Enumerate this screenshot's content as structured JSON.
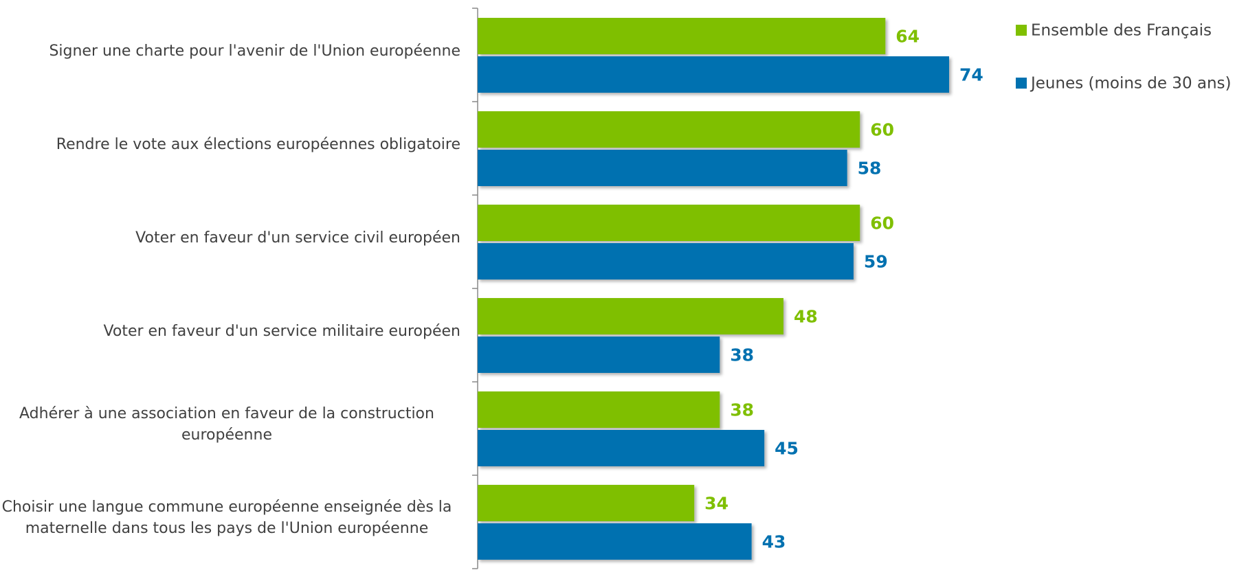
{
  "chart_data": {
    "type": "hbar",
    "categories": [
      "Signer une charte pour l'avenir de l'Union européenne",
      "Rendre le vote aux élections européennes obligatoire",
      "Voter en faveur d'un service civil européen",
      "Voter en faveur d'un service militaire européen",
      "Adhérer à une association en faveur de la construction européenne",
      "Choisir une langue commune européenne enseignée dès la maternelle dans tous les pays de l'Union européenne"
    ],
    "series": [
      {
        "name": "Ensemble des Français",
        "color": "#7fbf00",
        "values": [
          64,
          60,
          60,
          48,
          38,
          34
        ]
      },
      {
        "name": "Jeunes (moins de 30 ans)",
        "color": "#0071b0",
        "values": [
          74,
          58,
          59,
          38,
          45,
          43
        ]
      }
    ],
    "xlim": [
      0,
      100
    ],
    "legend": "top-right"
  }
}
